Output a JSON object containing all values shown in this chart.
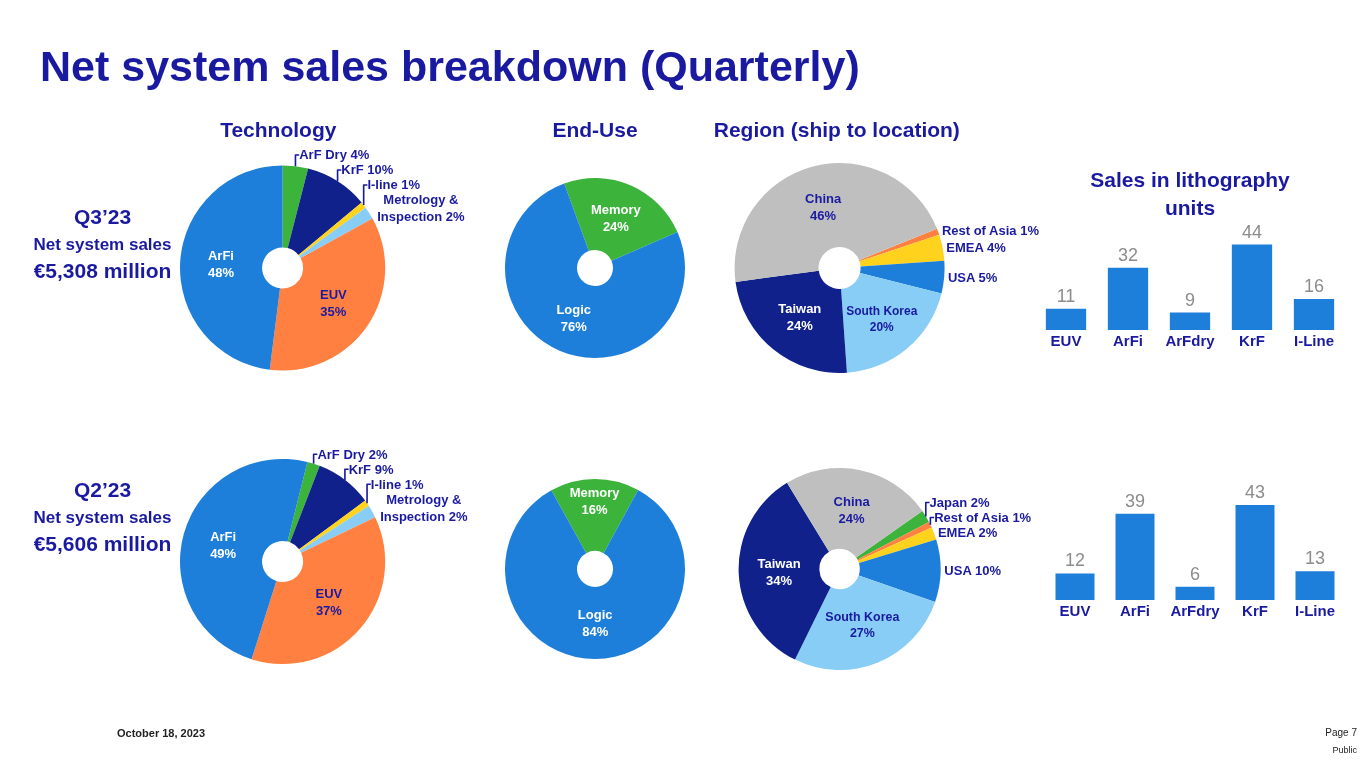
{
  "chart_data": [
    {
      "type": "other",
      "title": "Net system sales breakdown (Quarterly)",
      "annotations": [
        "October 18, 2023",
        "Page 7",
        "Public"
      ]
    },
    {
      "type": "other",
      "title": "Q3’23",
      "subtitle": "Net system sales",
      "annotations": [
        "€5,308 million"
      ]
    },
    {
      "type": "donut",
      "title": "Technology",
      "categories": [
        "ArF Dry",
        "KrF",
        "I-line",
        "Metrology & Inspection",
        "EUV",
        "ArFi"
      ],
      "values": [
        4,
        10,
        1,
        2,
        35,
        48
      ],
      "value_labels": [
        "4%",
        "10%",
        "1%",
        "2%",
        "35%",
        "48%"
      ],
      "colors": [
        "#3cb43c",
        "#10218b",
        "#ffd21e",
        "#87cdf5",
        "#ff8040",
        "#1e7fdb"
      ]
    },
    {
      "type": "donut",
      "title": "End-Use",
      "categories": [
        "Memory",
        "Logic"
      ],
      "values": [
        24,
        76
      ],
      "value_labels": [
        "24%",
        "76%"
      ],
      "colors": [
        "#3cb43c",
        "#1e7fdb"
      ]
    },
    {
      "type": "donut",
      "title": "Region (ship to location)",
      "categories": [
        "Rest of Asia",
        "EMEA",
        "USA",
        "South Korea",
        "Taiwan",
        "China"
      ],
      "values": [
        1,
        4,
        5,
        20,
        24,
        46
      ],
      "value_labels": [
        "1%",
        "4%",
        "5%",
        "20%",
        "24%",
        "46%"
      ],
      "colors": [
        "#ff8040",
        "#ffd21e",
        "#1e7fdb",
        "#87cdf5",
        "#10218b",
        "#bfbfbf"
      ]
    },
    {
      "type": "bar",
      "title": "Sales in lithography units",
      "categories": [
        "EUV",
        "ArFi",
        "ArFdry",
        "KrF",
        "I-Line"
      ],
      "values": [
        11,
        32,
        9,
        44,
        16
      ],
      "color": "#1e7fdb",
      "data_labels": true,
      "tick_labels": "x"
    },
    {
      "type": "other",
      "title": "Q2’23",
      "subtitle": "Net system sales",
      "annotations": [
        "€5,606 million"
      ]
    },
    {
      "type": "donut",
      "categories": [
        "ArF Dry",
        "KrF",
        "I-line",
        "Metrology & Inspection",
        "EUV",
        "ArFi"
      ],
      "values": [
        2,
        9,
        1,
        2,
        37,
        49
      ],
      "value_labels": [
        "2%",
        "9%",
        "1%",
        "2%",
        "37%",
        "49%"
      ],
      "colors": [
        "#3cb43c",
        "#10218b",
        "#ffd21e",
        "#87cdf5",
        "#ff8040",
        "#1e7fdb"
      ]
    },
    {
      "type": "donut",
      "categories": [
        "Memory",
        "Logic"
      ],
      "values": [
        16,
        84
      ],
      "value_labels": [
        "16%",
        "84%"
      ],
      "colors": [
        "#3cb43c",
        "#1e7fdb"
      ]
    },
    {
      "type": "donut",
      "categories": [
        "Japan",
        "Rest of Asia",
        "EMEA",
        "USA",
        "South Korea",
        "Taiwan",
        "China"
      ],
      "values": [
        2,
        1,
        2,
        10,
        27,
        34,
        24
      ],
      "value_labels": [
        "2%",
        "1%",
        "2%",
        "10%",
        "27%",
        "34%",
        "24%"
      ],
      "colors": [
        "#3cb43c",
        "#ff8040",
        "#ffd21e",
        "#1e7fdb",
        "#87cdf5",
        "#10218b",
        "#bfbfbf"
      ]
    },
    {
      "type": "bar",
      "categories": [
        "EUV",
        "ArFi",
        "ArFdry",
        "KrF",
        "I-Line"
      ],
      "values": [
        12,
        39,
        6,
        43,
        13
      ],
      "color": "#1e7fdb",
      "data_labels": true,
      "tick_labels": "x"
    }
  ]
}
